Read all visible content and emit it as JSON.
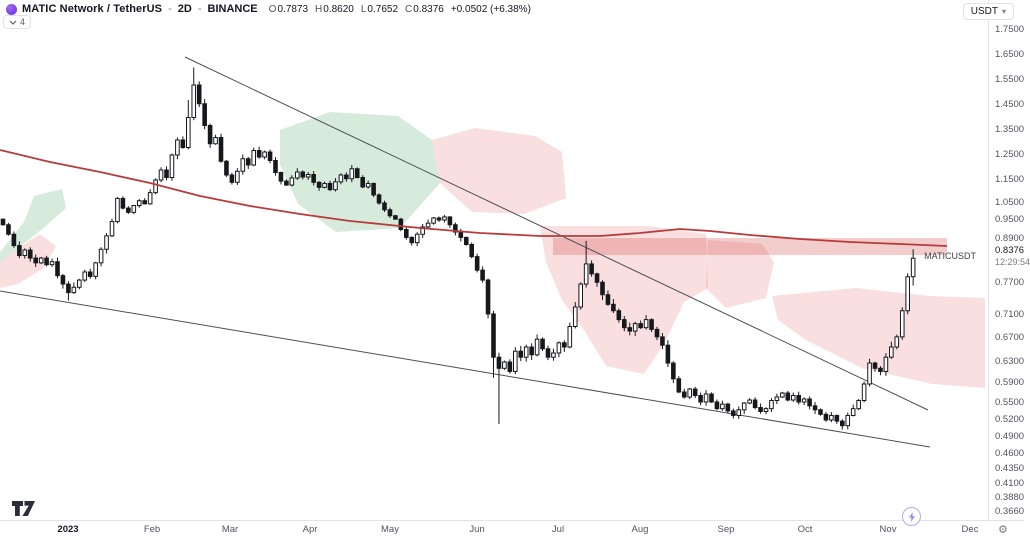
{
  "header": {
    "symbol_title": "MATIC Network / TetherUS",
    "separator": "-",
    "interval": "2D",
    "exchange": "BINANCE",
    "o_label": "O",
    "o_value": "0.7873",
    "h_label": "H",
    "h_value": "0.8620",
    "l_label": "L",
    "l_value": "0.7652",
    "c_label": "C",
    "c_value": "0.8376",
    "change_text": "+0.0502 (+6.38%)",
    "indicator_chip_count": "4"
  },
  "unit_button": {
    "label": "USDT",
    "caret": "▾"
  },
  "price_axis": {
    "current_price": "0.8376",
    "countdown": "12:29:54",
    "current_price_y": 252,
    "symbol_tag": "MATICUSDT",
    "ticks": [
      {
        "label": "1.7500",
        "y": 30
      },
      {
        "label": "1.6500",
        "y": 55
      },
      {
        "label": "1.5500",
        "y": 80
      },
      {
        "label": "1.4500",
        "y": 105
      },
      {
        "label": "1.3500",
        "y": 130
      },
      {
        "label": "1.2500",
        "y": 155
      },
      {
        "label": "1.1500",
        "y": 180
      },
      {
        "label": "1.0500",
        "y": 203
      },
      {
        "label": "0.9500",
        "y": 220
      },
      {
        "label": "0.8900",
        "y": 239
      },
      {
        "label": "0.7700",
        "y": 283
      },
      {
        "label": "0.7100",
        "y": 315
      },
      {
        "label": "0.6700",
        "y": 338
      },
      {
        "label": "0.6300",
        "y": 362
      },
      {
        "label": "0.5900",
        "y": 383
      },
      {
        "label": "0.5500",
        "y": 403
      },
      {
        "label": "0.5200",
        "y": 420
      },
      {
        "label": "0.4900",
        "y": 437
      },
      {
        "label": "0.4600",
        "y": 454
      },
      {
        "label": "0.4350",
        "y": 469
      },
      {
        "label": "0.4100",
        "y": 484
      },
      {
        "label": "0.3880",
        "y": 498
      },
      {
        "label": "0.3660",
        "y": 512
      }
    ]
  },
  "time_axis": {
    "gear": "⚙",
    "labels": [
      {
        "text": "2023",
        "x": 68,
        "bold": true
      },
      {
        "text": "Feb",
        "x": 152
      },
      {
        "text": "Mar",
        "x": 230
      },
      {
        "text": "Apr",
        "x": 310
      },
      {
        "text": "May",
        "x": 390
      },
      {
        "text": "Jun",
        "x": 477
      },
      {
        "text": "Jul",
        "x": 558
      },
      {
        "text": "Aug",
        "x": 640
      },
      {
        "text": "Sep",
        "x": 726
      },
      {
        "text": "Oct",
        "x": 805
      },
      {
        "text": "Nov",
        "x": 888
      },
      {
        "text": "Dec",
        "x": 970
      }
    ]
  },
  "chart_data": {
    "type": "candlestick",
    "title": "MATIC Network / TetherUS",
    "symbol": "MATICUSDT",
    "interval": "2D",
    "exchange": "BINANCE",
    "x_range": [
      "Dec 2022",
      "Nov 2023"
    ],
    "y_range": [
      0.366,
      1.75
    ],
    "grid": false,
    "last_candle": {
      "open": 0.7873,
      "high": 0.862,
      "low": 0.7652,
      "close": 0.8376,
      "change": "+0.0502",
      "change_pct": "+6.38%"
    },
    "scale_anchors": [
      [
        1.75,
        30
      ],
      [
        1.65,
        55
      ],
      [
        1.55,
        80
      ],
      [
        1.45,
        105
      ],
      [
        1.35,
        130
      ],
      [
        1.25,
        155
      ],
      [
        1.15,
        180
      ],
      [
        1.05,
        203
      ],
      [
        0.95,
        220
      ],
      [
        0.89,
        239
      ],
      [
        0.77,
        283
      ],
      [
        0.71,
        315
      ],
      [
        0.67,
        338
      ],
      [
        0.63,
        362
      ],
      [
        0.59,
        383
      ],
      [
        0.55,
        403
      ],
      [
        0.52,
        420
      ],
      [
        0.49,
        437
      ],
      [
        0.46,
        454
      ],
      [
        0.435,
        469
      ],
      [
        0.41,
        484
      ],
      [
        0.388,
        498
      ],
      [
        0.366,
        512
      ]
    ],
    "candle_start_x": 3,
    "candle_spacing": 5.45,
    "body_width": 3.6,
    "open_first": 0.955,
    "wick_pct": 0.011,
    "closes": [
      0.935,
      0.905,
      0.872,
      0.845,
      0.86,
      0.838,
      0.825,
      0.838,
      0.82,
      0.828,
      0.79,
      0.768,
      0.752,
      0.762,
      0.778,
      0.8,
      0.788,
      0.825,
      0.862,
      0.9,
      0.945,
      1.07,
      1.02,
      0.995,
      1.035,
      1.06,
      1.045,
      1.095,
      1.15,
      1.19,
      1.16,
      1.25,
      1.31,
      1.28,
      1.4,
      1.53,
      1.455,
      1.368,
      1.295,
      1.32,
      1.225,
      1.17,
      1.14,
      1.185,
      1.235,
      1.21,
      1.268,
      1.242,
      1.262,
      1.228,
      1.18,
      1.145,
      1.128,
      1.158,
      1.182,
      1.162,
      1.172,
      1.14,
      1.118,
      1.135,
      1.108,
      1.142,
      1.17,
      1.155,
      1.195,
      1.16,
      1.12,
      1.135,
      1.085,
      1.05,
      1.01,
      0.975,
      0.955,
      0.92,
      0.895,
      0.88,
      0.905,
      0.928,
      0.94,
      0.962,
      0.95,
      0.968,
      0.935,
      0.912,
      0.895,
      0.875,
      0.842,
      0.805,
      0.778,
      0.712,
      0.638,
      0.618,
      0.63,
      0.612,
      0.648,
      0.638,
      0.655,
      0.642,
      0.668,
      0.652,
      0.638,
      0.645,
      0.662,
      0.655,
      0.69,
      0.725,
      0.768,
      0.822,
      0.795,
      0.772,
      0.748,
      0.73,
      0.718,
      0.702,
      0.688,
      0.682,
      0.695,
      0.688,
      0.702,
      0.685,
      0.672,
      0.658,
      0.628,
      0.598,
      0.572,
      0.562,
      0.578,
      0.565,
      0.552,
      0.568,
      0.552,
      0.54,
      0.548,
      0.536,
      0.528,
      0.538,
      0.55,
      0.556,
      0.542,
      0.535,
      0.54,
      0.555,
      0.562,
      0.57,
      0.556,
      0.565,
      0.552,
      0.558,
      0.545,
      0.538,
      0.53,
      0.52,
      0.528,
      0.518,
      0.51,
      0.528,
      0.54,
      0.555,
      0.588,
      0.628,
      0.618,
      0.612,
      0.638,
      0.655,
      0.672,
      0.718,
      0.787,
      0.8376
    ],
    "overrides": {
      "12": {
        "low": 0.737
      },
      "34": {
        "high": 1.47
      },
      "35": {
        "high": 1.6
      },
      "90": {
        "low": 0.6
      },
      "91": {
        "low": 0.513
      },
      "107": {
        "high": 0.885
      },
      "154": {
        "low": 0.503
      },
      "167": {
        "open": 0.7873,
        "high": 0.862,
        "low": 0.7652,
        "close": 0.8376
      }
    },
    "colors": {
      "candle": "#16181d",
      "up_fill": "#ffffff",
      "ma_line": "#b73b3b",
      "trendline": "#4d4f56",
      "cloud_green": "rgba(120,190,140,0.30)",
      "cloud_pink": "rgba(235,140,140,0.28)",
      "band_fill": "rgba(215,85,85,0.30)"
    },
    "overlays": {
      "ma_line": [
        [
          0,
          150
        ],
        [
          50,
          162
        ],
        [
          100,
          172
        ],
        [
          150,
          183
        ],
        [
          200,
          196
        ],
        [
          250,
          206
        ],
        [
          300,
          214
        ],
        [
          350,
          221
        ],
        [
          420,
          228
        ],
        [
          480,
          233
        ],
        [
          540,
          236
        ],
        [
          600,
          236
        ],
        [
          640,
          233
        ],
        [
          680,
          229
        ],
        [
          710,
          231
        ],
        [
          750,
          235
        ],
        [
          800,
          239
        ],
        [
          850,
          242
        ],
        [
          900,
          244
        ],
        [
          947,
          246
        ]
      ],
      "trendlines": [
        {
          "x1": 185,
          "y1": 57,
          "x2": 928,
          "y2": 410
        },
        {
          "x1": 0,
          "y1": 291,
          "x2": 930,
          "y2": 447
        }
      ],
      "band": {
        "x1": 553,
        "x2": 947,
        "y1": 238,
        "y2": 255
      },
      "clouds": [
        {
          "kind": "green",
          "points": [
            [
              0,
              252
            ],
            [
              24,
              222
            ],
            [
              34,
              196
            ],
            [
              62,
              189
            ],
            [
              66,
              208
            ],
            [
              46,
              226
            ],
            [
              18,
              248
            ],
            [
              0,
              262
            ]
          ]
        },
        {
          "kind": "pink",
          "points": [
            [
              0,
              288
            ],
            [
              0,
              262
            ],
            [
              18,
              248
            ],
            [
              40,
              234
            ],
            [
              56,
              246
            ],
            [
              44,
              268
            ],
            [
              18,
              284
            ]
          ]
        },
        {
          "kind": "green",
          "points": [
            [
              280,
              130
            ],
            [
              330,
              112
            ],
            [
              398,
              116
            ],
            [
              432,
              140
            ],
            [
              440,
              183
            ],
            [
              400,
              228
            ],
            [
              336,
              232
            ],
            [
              298,
              204
            ],
            [
              280,
              165
            ]
          ]
        },
        {
          "kind": "pink",
          "points": [
            [
              432,
              140
            ],
            [
              475,
              128
            ],
            [
              535,
              136
            ],
            [
              562,
              152
            ],
            [
              566,
              198
            ],
            [
              524,
              214
            ],
            [
              472,
              212
            ],
            [
              440,
              183
            ]
          ]
        },
        {
          "kind": "pink",
          "points": [
            [
              540,
              226
            ],
            [
              648,
              226
            ],
            [
              706,
              234
            ],
            [
              708,
              288
            ],
            [
              684,
              302
            ],
            [
              664,
              344
            ],
            [
              644,
              374
            ],
            [
              606,
              366
            ],
            [
              584,
              330
            ],
            [
              562,
              300
            ],
            [
              546,
              262
            ]
          ]
        },
        {
          "kind": "pink",
          "points": [
            [
              708,
              240
            ],
            [
              762,
              244
            ],
            [
              774,
              262
            ],
            [
              766,
              298
            ],
            [
              726,
              308
            ],
            [
              706,
              288
            ]
          ]
        },
        {
          "kind": "pink",
          "points": [
            [
              772,
              296
            ],
            [
              856,
              288
            ],
            [
              930,
              296
            ],
            [
              985,
              298
            ],
            [
              985,
              388
            ],
            [
              932,
              384
            ],
            [
              862,
              368
            ],
            [
              806,
              340
            ],
            [
              778,
              320
            ]
          ]
        }
      ]
    }
  }
}
